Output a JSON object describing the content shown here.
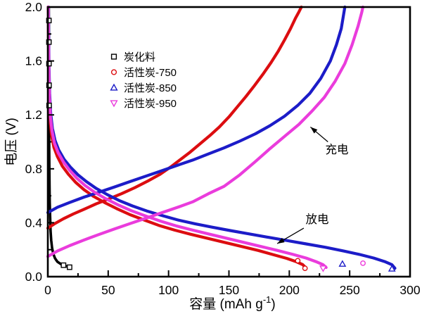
{
  "chart_data": {
    "type": "line",
    "title": "",
    "xlabel_prefix": "容量 (mAh g",
    "xlabel_sup": "-1",
    "xlabel_suffix": ")",
    "ylabel": "电压 (V)",
    "xlim": [
      0,
      300
    ],
    "ylim": [
      0,
      2.0
    ],
    "grid": false,
    "xticks": {
      "major": [
        {
          "v": 0,
          "label": "0"
        },
        {
          "v": 50,
          "label": "50"
        },
        {
          "v": 100,
          "label": "100"
        },
        {
          "v": 150,
          "label": "150"
        },
        {
          "v": 200,
          "label": "200"
        },
        {
          "v": 250,
          "label": "250"
        },
        {
          "v": 300,
          "label": "300"
        }
      ],
      "minor": [
        25,
        75,
        125,
        175,
        225,
        275
      ]
    },
    "yticks": {
      "major": [
        {
          "v": 0,
          "label": "0.0"
        },
        {
          "v": 0.4,
          "label": "0.4"
        },
        {
          "v": 0.8,
          "label": "0.8"
        },
        {
          "v": 1.2,
          "label": "1.2"
        },
        {
          "v": 1.6,
          "label": "1.6"
        },
        {
          "v": 2.0,
          "label": "2.0"
        }
      ],
      "minor": [
        0.2,
        0.6,
        1.0,
        1.4,
        1.8
      ]
    },
    "legend": {
      "position": "upper-left-inside",
      "items": [
        {
          "label": "炭化料",
          "marker": "square",
          "color": "#000000"
        },
        {
          "label": "活性炭-750",
          "marker": "circle",
          "color": "#dc0d10"
        },
        {
          "label": "活性炭-850",
          "marker": "triangle-up",
          "color": "#1c1cc8"
        },
        {
          "label": "活性炭-950",
          "marker": "triangle-down",
          "color": "#ea3cdc"
        }
      ]
    },
    "series": [
      {
        "name": "炭化料",
        "color": "#000000",
        "marker": "square",
        "width": 3.6,
        "discharge": [
          [
            0.8,
            2.0
          ],
          [
            0.85,
            1.8
          ],
          [
            0.9,
            1.6
          ],
          [
            0.95,
            1.4
          ],
          [
            1.0,
            1.2
          ],
          [
            1.1,
            1.0
          ],
          [
            1.2,
            0.85
          ],
          [
            1.4,
            0.68
          ],
          [
            1.6,
            0.55
          ],
          [
            1.9,
            0.44
          ],
          [
            2.3,
            0.34
          ],
          [
            2.8,
            0.27
          ],
          [
            3.5,
            0.215
          ],
          [
            4.5,
            0.17
          ],
          [
            6,
            0.135
          ],
          [
            8,
            0.11
          ],
          [
            10.5,
            0.095
          ],
          [
            13,
            0.085
          ],
          [
            15.5,
            0.077
          ],
          [
            18,
            0.07
          ]
        ]
      },
      {
        "name": "活性炭-750",
        "color": "#dc0d10",
        "marker": "circle",
        "width": 4.2,
        "discharge": [
          [
            0.3,
            2.0
          ],
          [
            0.5,
            1.75
          ],
          [
            0.8,
            1.5
          ],
          [
            1.2,
            1.3
          ],
          [
            2,
            1.15
          ],
          [
            3,
            1.05
          ],
          [
            5,
            0.96
          ],
          [
            8,
            0.89
          ],
          [
            12,
            0.82
          ],
          [
            17,
            0.76
          ],
          [
            23,
            0.7
          ],
          [
            30,
            0.645
          ],
          [
            38,
            0.595
          ],
          [
            47,
            0.55
          ],
          [
            57,
            0.505
          ],
          [
            68,
            0.46
          ],
          [
            80,
            0.42
          ],
          [
            92,
            0.38
          ],
          [
            105,
            0.345
          ],
          [
            118,
            0.315
          ],
          [
            132,
            0.285
          ],
          [
            146,
            0.255
          ],
          [
            160,
            0.225
          ],
          [
            174,
            0.195
          ],
          [
            188,
            0.16
          ],
          [
            198,
            0.135
          ],
          [
            206,
            0.11
          ],
          [
            211,
            0.09
          ],
          [
            213.5,
            0.068
          ]
        ],
        "charge": [
          [
            0,
            0.36
          ],
          [
            6,
            0.395
          ],
          [
            13,
            0.43
          ],
          [
            21,
            0.465
          ],
          [
            30,
            0.5
          ],
          [
            40,
            0.54
          ],
          [
            50,
            0.575
          ],
          [
            61,
            0.615
          ],
          [
            72,
            0.66
          ],
          [
            83,
            0.71
          ],
          [
            93,
            0.76
          ],
          [
            102,
            0.815
          ],
          [
            110,
            0.87
          ],
          [
            118,
            0.925
          ],
          [
            126,
            0.985
          ],
          [
            134,
            1.045
          ],
          [
            142,
            1.11
          ],
          [
            150,
            1.185
          ],
          [
            157,
            1.26
          ],
          [
            164,
            1.335
          ],
          [
            171,
            1.415
          ],
          [
            178,
            1.5
          ],
          [
            185,
            1.59
          ],
          [
            191,
            1.675
          ],
          [
            196,
            1.755
          ],
          [
            201,
            1.84
          ],
          [
            205,
            1.915
          ],
          [
            208,
            1.965
          ],
          [
            210,
            2.0
          ]
        ]
      },
      {
        "name": "活性炭-850",
        "color": "#1c1cc8",
        "marker": "triangle-up",
        "width": 4.2,
        "discharge": [
          [
            0.5,
            2.0
          ],
          [
            0.7,
            1.78
          ],
          [
            1.0,
            1.55
          ],
          [
            1.5,
            1.36
          ],
          [
            2.4,
            1.21
          ],
          [
            3.8,
            1.1
          ],
          [
            6,
            1.01
          ],
          [
            9,
            0.94
          ],
          [
            13.5,
            0.87
          ],
          [
            19,
            0.81
          ],
          [
            25,
            0.755
          ],
          [
            32,
            0.705
          ],
          [
            40,
            0.655
          ],
          [
            49,
            0.61
          ],
          [
            59,
            0.565
          ],
          [
            70,
            0.525
          ],
          [
            82,
            0.487
          ],
          [
            95,
            0.452
          ],
          [
            108,
            0.42
          ],
          [
            122,
            0.392
          ],
          [
            136,
            0.367
          ],
          [
            151,
            0.342
          ],
          [
            166,
            0.318
          ],
          [
            182,
            0.293
          ],
          [
            198,
            0.268
          ],
          [
            214,
            0.243
          ],
          [
            230,
            0.218
          ],
          [
            245,
            0.19
          ],
          [
            258,
            0.165
          ],
          [
            270,
            0.138
          ],
          [
            279,
            0.112
          ],
          [
            285,
            0.088
          ],
          [
            287.5,
            0.062
          ]
        ],
        "charge": [
          [
            0,
            0.475
          ],
          [
            8,
            0.515
          ],
          [
            18,
            0.55
          ],
          [
            30,
            0.59
          ],
          [
            42,
            0.625
          ],
          [
            55,
            0.665
          ],
          [
            68,
            0.705
          ],
          [
            81,
            0.745
          ],
          [
            94,
            0.785
          ],
          [
            107,
            0.825
          ],
          [
            120,
            0.865
          ],
          [
            133,
            0.91
          ],
          [
            146,
            0.955
          ],
          [
            159,
            1.005
          ],
          [
            172,
            1.06
          ],
          [
            184,
            1.12
          ],
          [
            196,
            1.19
          ],
          [
            207,
            1.27
          ],
          [
            217,
            1.36
          ],
          [
            226,
            1.47
          ],
          [
            234,
            1.6
          ],
          [
            239,
            1.72
          ],
          [
            243,
            1.84
          ],
          [
            246,
            2.0
          ]
        ]
      },
      {
        "name": "活性炭-950",
        "color": "#ea3cdc",
        "marker": "triangle-down",
        "width": 4.2,
        "discharge": [
          [
            0.4,
            2.0
          ],
          [
            0.6,
            1.76
          ],
          [
            0.9,
            1.52
          ],
          [
            1.4,
            1.33
          ],
          [
            2.2,
            1.18
          ],
          [
            3.5,
            1.08
          ],
          [
            5.5,
            0.99
          ],
          [
            8.5,
            0.92
          ],
          [
            13,
            0.85
          ],
          [
            18,
            0.79
          ],
          [
            24,
            0.73
          ],
          [
            31,
            0.675
          ],
          [
            39,
            0.625
          ],
          [
            48,
            0.578
          ],
          [
            58,
            0.533
          ],
          [
            69,
            0.49
          ],
          [
            81,
            0.45
          ],
          [
            94,
            0.41
          ],
          [
            107,
            0.375
          ],
          [
            120,
            0.345
          ],
          [
            134,
            0.315
          ],
          [
            148,
            0.285
          ],
          [
            162,
            0.255
          ],
          [
            176,
            0.225
          ],
          [
            190,
            0.195
          ],
          [
            203,
            0.165
          ],
          [
            214,
            0.138
          ],
          [
            222,
            0.112
          ],
          [
            228,
            0.088
          ],
          [
            230.5,
            0.068
          ]
        ],
        "charge": [
          [
            0,
            0.15
          ],
          [
            8,
            0.19
          ],
          [
            18,
            0.23
          ],
          [
            30,
            0.272
          ],
          [
            42,
            0.312
          ],
          [
            55,
            0.353
          ],
          [
            68,
            0.393
          ],
          [
            81,
            0.433
          ],
          [
            94,
            0.473
          ],
          [
            107,
            0.513
          ],
          [
            120,
            0.555
          ],
          [
            133,
            0.615
          ],
          [
            146,
            0.67
          ],
          [
            159,
            0.755
          ],
          [
            172,
            0.855
          ],
          [
            184,
            0.95
          ],
          [
            196,
            1.04
          ],
          [
            208,
            1.13
          ],
          [
            219,
            1.23
          ],
          [
            229,
            1.33
          ],
          [
            238,
            1.45
          ],
          [
            246,
            1.58
          ],
          [
            252,
            1.72
          ],
          [
            257,
            1.86
          ],
          [
            260,
            1.96
          ],
          [
            261,
            2.0
          ]
        ]
      }
    ],
    "extra_markers": [
      {
        "shape": "square",
        "color": "#000000",
        "x": 0.9,
        "y": 1.9
      },
      {
        "shape": "square",
        "color": "#000000",
        "x": 0.9,
        "y": 1.74
      },
      {
        "shape": "square",
        "color": "#000000",
        "x": 0.95,
        "y": 1.58
      },
      {
        "shape": "square",
        "color": "#000000",
        "x": 1.0,
        "y": 1.42
      },
      {
        "shape": "square",
        "color": "#000000",
        "x": 1.05,
        "y": 1.27
      },
      {
        "shape": "square",
        "color": "#000000",
        "x": 13,
        "y": 0.085
      },
      {
        "shape": "square",
        "color": "#000000",
        "x": 18,
        "y": 0.07
      },
      {
        "shape": "circle",
        "color": "#dc0d10",
        "x": 207,
        "y": 0.118
      },
      {
        "shape": "circle",
        "color": "#dc0d10",
        "x": 213,
        "y": 0.062
      },
      {
        "shape": "circle",
        "color": "#ee3adb",
        "x": 261,
        "y": 0.1
      },
      {
        "shape": "triangle-up",
        "color": "#1c1cc8",
        "x": 244,
        "y": 0.094
      },
      {
        "shape": "triangle-up",
        "color": "#1c1cc8",
        "x": 285,
        "y": 0.058
      },
      {
        "shape": "triangle-down",
        "color": "#ea3cdc",
        "x": 228,
        "y": 0.062
      }
    ],
    "annotations": [
      {
        "id": "charge",
        "text": "充电",
        "tx": 239.4,
        "ty": 0.914,
        "arrow": {
          "x1": 232,
          "y1": 1.0,
          "x2": 217.5,
          "y2": 1.11
        }
      },
      {
        "id": "discharge",
        "text": "放电",
        "tx": 223.1,
        "ty": 0.397,
        "arrow": {
          "x1": 212,
          "y1": 0.36,
          "x2": 190,
          "y2": 0.245
        }
      }
    ]
  }
}
